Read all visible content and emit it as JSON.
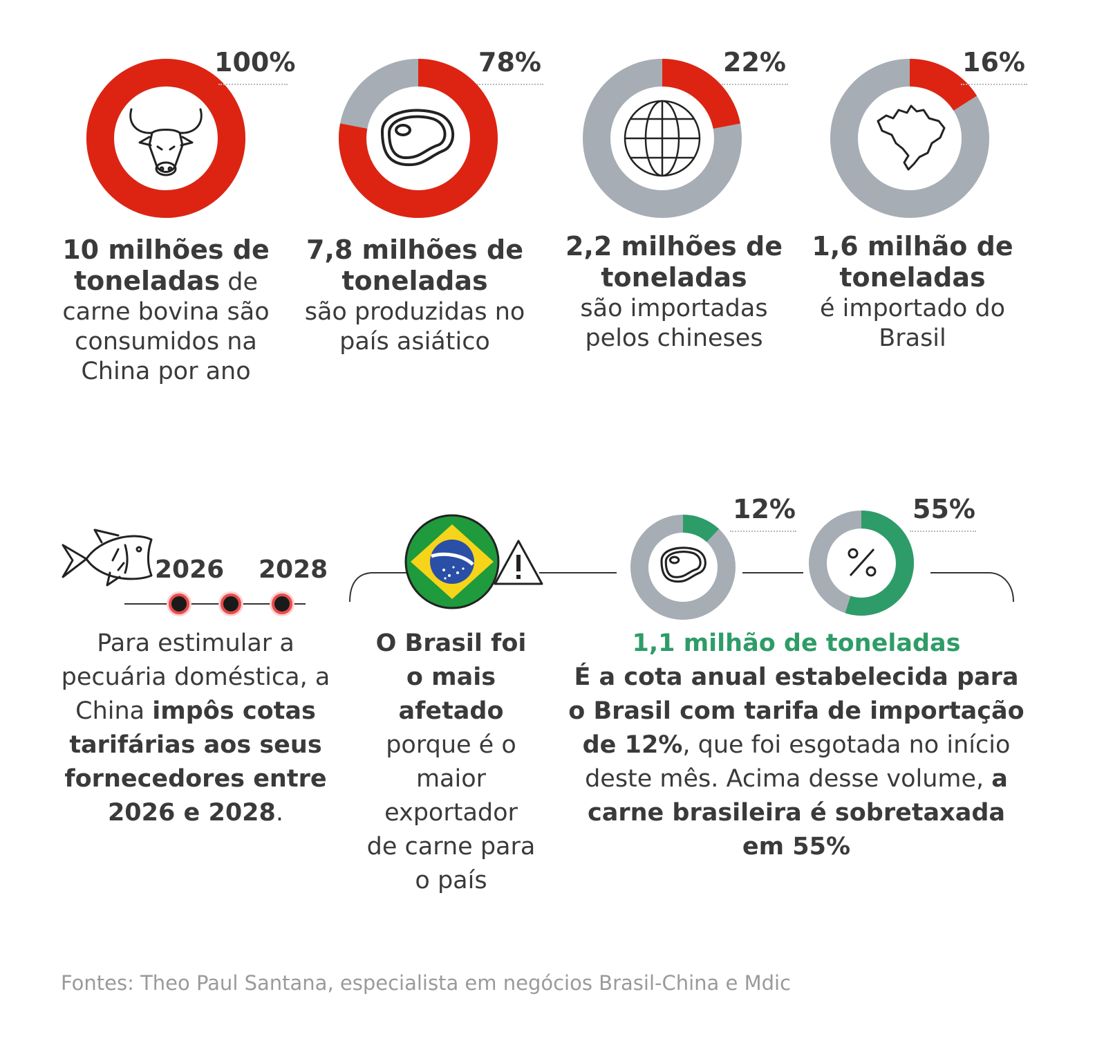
{
  "chart_data": [
    {
      "type": "pie",
      "label": "100%",
      "value": 100,
      "color": "#dd2412"
    },
    {
      "type": "pie",
      "label": "78%",
      "value": 78,
      "color": "#dd2412"
    },
    {
      "type": "pie",
      "label": "22%",
      "value": 22,
      "color": "#dd2412"
    },
    {
      "type": "pie",
      "label": "16%",
      "value": 16,
      "color": "#dd2412"
    },
    {
      "type": "pie",
      "label": "12%",
      "value": 12,
      "color": "#2e9c68"
    },
    {
      "type": "pie",
      "label": "55%",
      "value": 55,
      "color": "#2e9c68"
    }
  ],
  "colors": {
    "red": "#dd2412",
    "green": "#2e9c68",
    "gray": "#a7adb4"
  },
  "stats": [
    {
      "bold": "10 milhões de toneladas",
      "rest": " de carne bovina são consumidos na China por ano"
    },
    {
      "bold": "7,8 milhões de toneladas",
      "rest": "são produzidas no país asiático"
    },
    {
      "bold": "2,2 milhões de toneladas",
      "rest": "são importadas pelos chineses"
    },
    {
      "bold": "1,6 milhão de toneladas",
      "rest": "é importado do Brasil"
    }
  ],
  "icons": [
    "bull-icon",
    "steak-icon",
    "globe-icon",
    "brazil-map-icon",
    "fish-icon",
    "brazil-flag-icon",
    "warning-icon",
    "steak-icon",
    "percent-icon"
  ],
  "timeline": {
    "year1": "2026",
    "year2": "2028"
  },
  "block1": {
    "p1": "Para estimular a pecuária doméstica, a China ",
    "b1": "impôs cotas tarifárias aos seus fornecedores entre 2026 e 2028",
    "p2": "."
  },
  "block2": {
    "b1": "O Brasil foi o mais afetado",
    "p1": "porque é o maior exportador de carne para o país"
  },
  "block3": {
    "headline": "1,1 milhão de toneladas",
    "b1": "É a cota anual estabelecida para o Brasil com tarifa de importação de 12%",
    "p1": ", que foi esgotada no início deste mês. Acima desse volume, ",
    "b2": "a carne brasileira é sobretaxada em 55%"
  },
  "source": "Fontes: Theo Paul Santana, especialista em negócios Brasil-China e Mdic"
}
